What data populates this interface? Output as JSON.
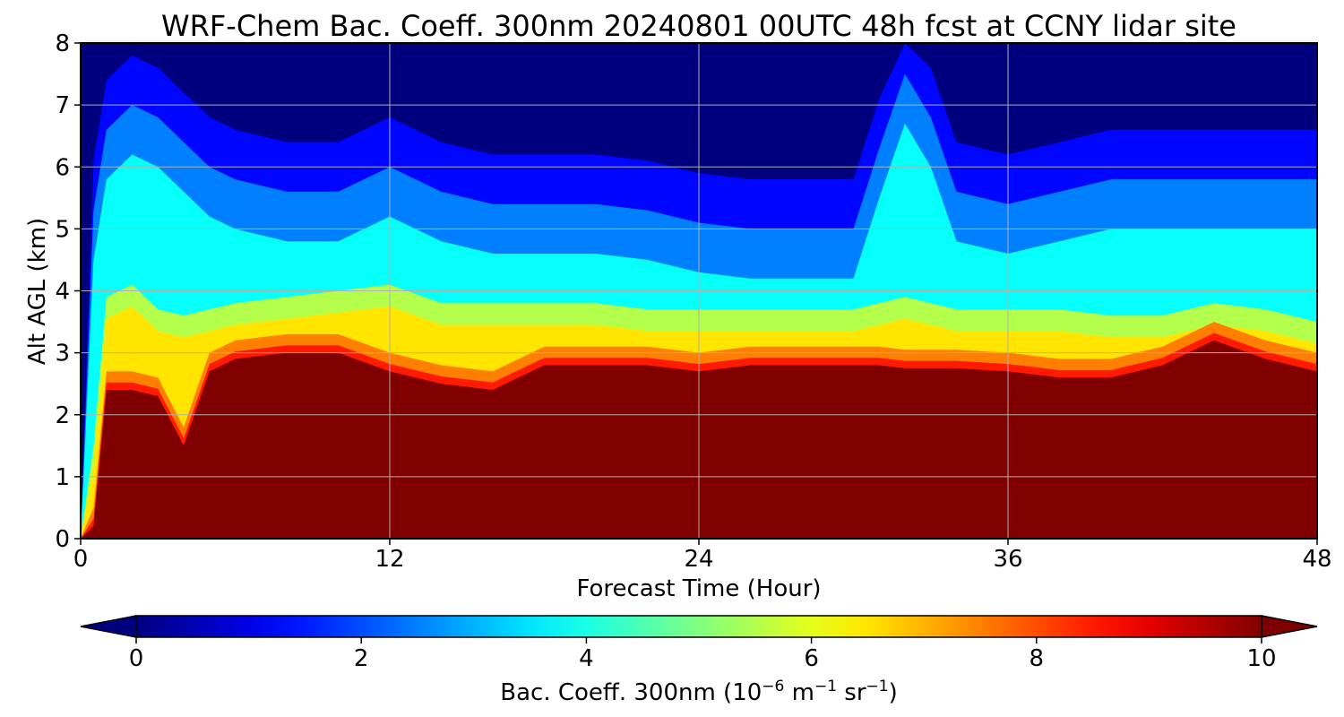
{
  "chart_data": {
    "type": "heatmap",
    "title": "WRF-Chem Bac. Coeff. 300nm  20240801 00UTC 48h fcst at CCNY lidar site",
    "xlabel": "Forecast Time (Hour)",
    "ylabel": "Alt AGL (km)",
    "xlim": [
      0,
      48
    ],
    "ylim": [
      0,
      8
    ],
    "x_ticks": [
      "0",
      "12",
      "24",
      "36",
      "48"
    ],
    "y_ticks": [
      "0",
      "1",
      "2",
      "3",
      "4",
      "5",
      "6",
      "7",
      "8"
    ],
    "grid": true,
    "colormap": "jet",
    "colorbar": {
      "label_main": "Bac. Coeff. 300nm  (10",
      "label_exp1": "−6",
      "label_mid": " m",
      "label_exp2": "−1",
      "label_mid2": " sr",
      "label_exp3": "−1",
      "label_end": ")",
      "range": [
        0,
        10
      ],
      "ticks": [
        "0",
        "2",
        "4",
        "6",
        "8",
        "10"
      ],
      "extend": "both",
      "orientation": "horizontal"
    },
    "times": [
      0,
      0.5,
      1,
      2,
      3,
      4,
      5,
      6,
      8,
      10,
      12,
      14,
      16,
      18,
      20,
      22,
      24,
      26,
      28,
      30,
      31,
      32,
      33,
      34,
      36,
      38,
      40,
      42,
      44,
      46,
      48
    ],
    "layer_top_km": [
      0,
      0.2,
      2.4,
      2.4,
      2.3,
      1.5,
      2.7,
      2.9,
      3.0,
      3.0,
      2.7,
      2.5,
      2.4,
      2.8,
      2.8,
      2.8,
      2.7,
      2.8,
      2.8,
      2.8,
      2.8,
      2.75,
      2.75,
      2.75,
      2.7,
      2.6,
      2.6,
      2.8,
      3.2,
      2.9,
      2.7
    ],
    "max_backscatter_contour_km": [
      0,
      1.0,
      3.4,
      3.6,
      3.2,
      3.1,
      3.2,
      3.3,
      3.4,
      3.5,
      3.6,
      3.3,
      3.3,
      3.3,
      3.3,
      3.2,
      3.2,
      3.2,
      3.2,
      3.2,
      3.3,
      3.4,
      3.3,
      3.2,
      3.2,
      3.2,
      3.1,
      3.1,
      3.3,
      3.2,
      3.0
    ],
    "aerosol_top_km": [
      0,
      4.5,
      5.8,
      6.2,
      6.0,
      5.6,
      5.2,
      5.0,
      4.8,
      4.8,
      5.2,
      4.8,
      4.6,
      4.6,
      4.6,
      4.5,
      4.3,
      4.2,
      4.2,
      4.2,
      5.5,
      6.7,
      6.0,
      4.8,
      4.6,
      4.8,
      5.0,
      5.0,
      5.0,
      5.0,
      5.0
    ]
  }
}
